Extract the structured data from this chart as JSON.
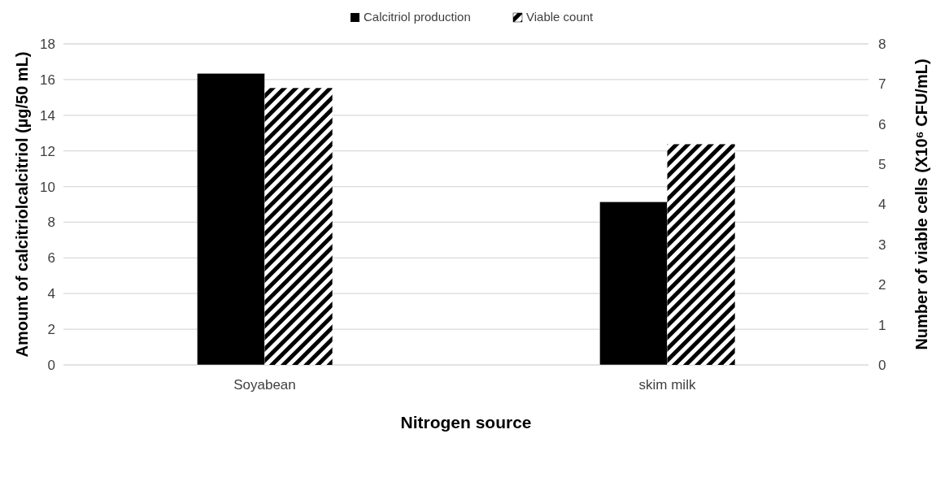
{
  "chart_data": {
    "type": "bar",
    "categories": [
      "Soyabean",
      "skim milk"
    ],
    "series": [
      {
        "name": "Calcitriol production",
        "color": "#000000",
        "values": [
          16.35,
          9.15
        ]
      },
      {
        "name": "Viable count",
        "color": "#000000",
        "values": [
          6.9,
          5.5
        ],
        "axis": "y2"
      }
    ],
    "xlabel": "Nitrogen source",
    "ylabel": "Amount of calcitriolcalcitriol (µg/50 mL)",
    "y2label": "Number of viable cells (X10⁶ CFU/mL)",
    "ylim": [
      0,
      18
    ],
    "yticks": [
      0,
      2,
      4,
      6,
      8,
      10,
      12,
      14,
      16,
      18
    ],
    "y2lim": [
      0,
      8
    ],
    "y2ticks": [
      0,
      1,
      2,
      3,
      4,
      5,
      6,
      7,
      8
    ],
    "grid": "y",
    "legend": "top"
  }
}
